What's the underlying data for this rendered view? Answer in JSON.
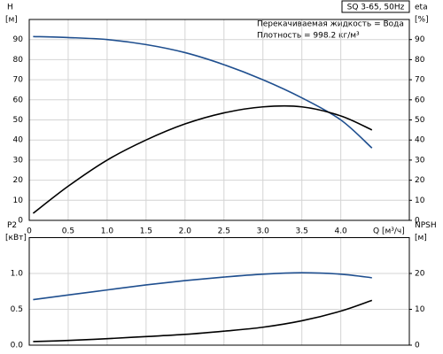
{
  "header": {
    "model": "SQ 3-65, 50Hz",
    "liquid": "Перекачиваемая жидкость = Вода",
    "density": "Плотность = 998.2 кг/м³"
  },
  "chart_data": [
    {
      "type": "line",
      "ylabel": "H",
      "yunit": "[м]",
      "y2label": "eta",
      "y2unit": "[%]",
      "xlabel": "Q [м³/ч]",
      "x": [
        0.05,
        0.5,
        1.0,
        1.5,
        2.0,
        2.5,
        3.0,
        3.5,
        4.0,
        4.4
      ],
      "series": [
        {
          "color": "#1f4f8f",
          "values": [
            91.5,
            91,
            90,
            87.5,
            83.5,
            77.5,
            70,
            61,
            50,
            36
          ]
        },
        {
          "color": "#000000",
          "axis": "y2",
          "values": [
            3.5,
            17,
            30,
            40,
            48,
            53.5,
            56.5,
            56.5,
            52,
            45
          ]
        }
      ],
      "xlim": [
        0,
        4.88
      ],
      "xticks": [
        0,
        0.5,
        {
          "value": 1,
          "label": "1.0"
        },
        1.5,
        {
          "value": 2,
          "label": "2.0"
        },
        2.5,
        {
          "value": 3,
          "label": "3.0"
        },
        3.5,
        {
          "value": 4,
          "label": "4.0"
        }
      ],
      "ylim": [
        0,
        100
      ],
      "yticks": [
        0,
        10,
        20,
        30,
        40,
        50,
        60,
        70,
        80,
        90
      ],
      "y2lim": [
        0,
        100
      ],
      "y2ticks": [
        0,
        10,
        20,
        30,
        40,
        50,
        60,
        70,
        80,
        90
      ],
      "grid": true
    },
    {
      "type": "line",
      "ylabel": "P2",
      "yunit": "[кВт]",
      "y2label": "NPSH",
      "y2unit": "[м]",
      "x": [
        0.05,
        0.5,
        1.0,
        1.5,
        2.0,
        2.5,
        3.0,
        3.5,
        4.0,
        4.4
      ],
      "series": [
        {
          "color": "#1f4f8f",
          "values": [
            0.635,
            0.7,
            0.77,
            0.84,
            0.9,
            0.95,
            0.99,
            1.01,
            0.99,
            0.94
          ]
        },
        {
          "color": "#000000",
          "axis": "y2",
          "values": [
            1,
            1.3,
            1.8,
            2.4,
            3,
            3.9,
            5,
            6.8,
            9.5,
            12.5
          ]
        }
      ],
      "xlim": [
        0,
        4.88
      ],
      "ylim": [
        0,
        1.5
      ],
      "yticks": [
        {
          "value": 0,
          "label": "0.0"
        },
        0.5,
        {
          "value": 1,
          "label": "1.0"
        }
      ],
      "y2lim": [
        0,
        30
      ],
      "y2ticks": [
        0,
        10,
        20
      ],
      "grid": true
    }
  ]
}
